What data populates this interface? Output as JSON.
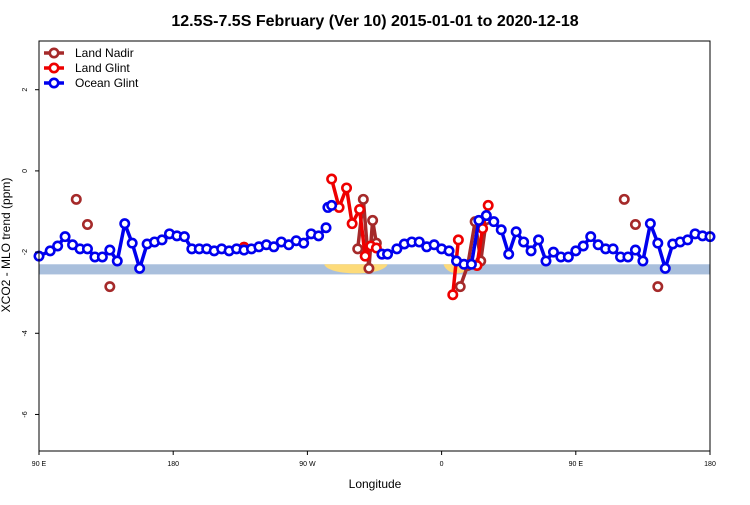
{
  "chart_data": {
    "type": "line",
    "title": "12.5S-7.5S February (Ver 10)   2015-01-01 to 2020-12-18",
    "xlabel": "Longitude",
    "ylabel": "XCO2 - MLO trend (ppm)",
    "xlim": [
      90,
      450
    ],
    "ylim": [
      -6.9,
      3.2
    ],
    "x_ticks": [
      {
        "value": 90,
        "label": "90 E"
      },
      {
        "value": 162,
        "label": "180"
      },
      {
        "value": 234,
        "label": "90 W"
      },
      {
        "value": 306,
        "label": "0"
      },
      {
        "value": 378,
        "label": "90 E"
      },
      {
        "value": 450,
        "label": "180"
      }
    ],
    "y_ticks": [
      {
        "value": 2,
        "label": "2"
      },
      {
        "value": 0,
        "label": "0"
      },
      {
        "value": -2,
        "label": "-2"
      },
      {
        "value": -4,
        "label": "-4"
      },
      {
        "value": -6,
        "label": "-6"
      }
    ],
    "legend_position": "top-left",
    "grid": false,
    "band": {
      "y_low": -2.55,
      "y_high": -2.3,
      "color": "#a9bfdc"
    },
    "land_segments": [
      {
        "x_start": 243,
        "x_end": 277,
        "color": "#fddb7a"
      },
      {
        "x_start": 307,
        "x_end": 322,
        "color": "#fddb7a"
      }
    ],
    "series": [
      {
        "name": "Land Nadir",
        "color": "#a52a2a",
        "segments": [
          {
            "x": [
              110
            ],
            "y": [
              -0.7
            ]
          },
          {
            "x": [
              116
            ],
            "y": [
              -1.32
            ]
          },
          {
            "x": [
              128
            ],
            "y": [
              -2.85
            ]
          },
          {
            "x": [
              200
            ],
            "y": [
              -1.88
            ]
          },
          {
            "x": [
              261,
              264,
              267,
              269,
              271
            ],
            "y": [
              -1.92,
              -0.7,
              -2.4,
              -1.22,
              -1.78
            ]
          },
          {
            "x": [
              316,
              320,
              324,
              327,
              330
            ],
            "y": [
              -2.85,
              -2.33,
              -1.25,
              -2.22,
              -1.2
            ]
          },
          {
            "x": [
              404
            ],
            "y": [
              -0.7
            ]
          },
          {
            "x": [
              410
            ],
            "y": [
              -1.32
            ]
          },
          {
            "x": [
              422
            ],
            "y": [
              -2.85
            ]
          }
        ]
      },
      {
        "name": "Land Glint",
        "color": "#ee0000",
        "segments": [
          {
            "x": [
              200
            ],
            "y": [
              -1.88
            ]
          },
          {
            "x": [
              247,
              251,
              255,
              258,
              262,
              265,
              268,
              271,
              274
            ],
            "y": [
              -0.2,
              -0.9,
              -0.42,
              -1.3,
              -0.95,
              -2.1,
              -1.85,
              -1.9,
              -2.05
            ]
          },
          {
            "x": [
              312,
              315
            ],
            "y": [
              -3.05,
              -1.7
            ]
          },
          {
            "x": [
              325,
              328,
              331
            ],
            "y": [
              -2.33,
              -1.42,
              -0.85
            ]
          }
        ]
      },
      {
        "name": "Ocean Glint",
        "color": "#0000ee",
        "segments": [
          {
            "x": [
              90,
              96,
              100,
              104,
              108,
              112,
              116,
              120,
              124,
              128,
              132,
              136,
              140,
              144,
              148,
              152,
              156,
              160,
              164,
              168,
              172,
              176,
              180,
              184,
              188,
              192,
              196,
              200,
              204,
              208,
              212,
              216,
              220,
              224,
              228,
              232,
              236,
              240,
              244
            ],
            "y": [
              -2.1,
              -1.97,
              -1.85,
              -1.62,
              -1.82,
              -1.92,
              -1.92,
              -2.12,
              -2.12,
              -1.95,
              -2.22,
              -1.3,
              -1.78,
              -2.4,
              -1.8,
              -1.75,
              -1.7,
              -1.55,
              -1.6,
              -1.62,
              -1.92,
              -1.92,
              -1.92,
              -1.97,
              -1.92,
              -1.97,
              -1.92,
              -1.95,
              -1.92,
              -1.87,
              -1.82,
              -1.87,
              -1.75,
              -1.82,
              -1.72,
              -1.78,
              -1.55,
              -1.6,
              -1.4
            ]
          },
          {
            "x": [
              245,
              247
            ],
            "y": [
              -0.9,
              -0.85
            ]
          },
          {
            "x": [
              274,
              277,
              282,
              286,
              290,
              294,
              298,
              302,
              306,
              310,
              314,
              318,
              322,
              326,
              330,
              334,
              338,
              342,
              346,
              350,
              354,
              358,
              362,
              366,
              370,
              374,
              378,
              382,
              386,
              390,
              394,
              398,
              402,
              406,
              410,
              414,
              418,
              422,
              426,
              430,
              434,
              438,
              442,
              446,
              450
            ],
            "y": [
              -2.05,
              -2.05,
              -1.92,
              -1.8,
              -1.75,
              -1.75,
              -1.87,
              -1.82,
              -1.92,
              -1.97,
              -2.22,
              -2.3,
              -2.3,
              -1.22,
              -1.1,
              -1.25,
              -1.45,
              -2.05,
              -1.5,
              -1.75,
              -1.97,
              -1.7,
              -2.22,
              -2.0,
              -2.12,
              -2.12,
              -1.97,
              -1.85,
              -1.62,
              -1.82,
              -1.92,
              -1.92,
              -2.12,
              -2.12,
              -1.95,
              -2.22,
              -1.3,
              -1.78,
              -2.4,
              -1.8,
              -1.75,
              -1.7,
              -1.55,
              -1.6,
              -1.62
            ]
          }
        ]
      }
    ]
  }
}
